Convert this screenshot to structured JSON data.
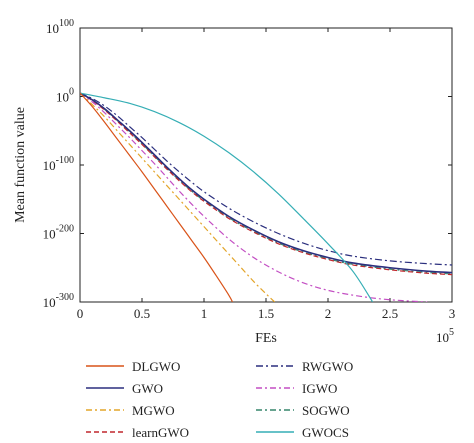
{
  "chart_data": {
    "type": "line",
    "title": "",
    "xlabel": "FEs",
    "ylabel": "Mean function value",
    "x_scale_label": "10^5",
    "x_scale_base": "10",
    "x_scale_exp": "5",
    "xlim": [
      0,
      3
    ],
    "ylim_exponent": [
      -300,
      100
    ],
    "y_scale": "log",
    "x_ticks": [
      "0",
      "0.5",
      "1",
      "1.5",
      "2",
      "2.5",
      "3"
    ],
    "y_ticks": [
      {
        "exp": -300,
        "base": "10",
        "sup": "-300"
      },
      {
        "exp": -200,
        "base": "10",
        "sup": "-200"
      },
      {
        "exp": -100,
        "base": "10",
        "sup": "-100"
      },
      {
        "exp": 0,
        "base": "10",
        "sup": "0"
      },
      {
        "exp": 100,
        "base": "10",
        "sup": "100"
      }
    ],
    "grid": false,
    "legend_position": "bottom",
    "series": [
      {
        "name": "DLGWO",
        "color": "#d95319",
        "dash": "solid",
        "points": [
          [
            0,
            5
          ],
          [
            0.1,
            -15
          ],
          [
            0.2,
            -38
          ],
          [
            0.3,
            -62
          ],
          [
            0.4,
            -86
          ],
          [
            0.5,
            -110
          ],
          [
            0.6,
            -135
          ],
          [
            0.7,
            -160
          ],
          [
            0.8,
            -185
          ],
          [
            0.9,
            -210
          ],
          [
            1.0,
            -235
          ],
          [
            1.1,
            -262
          ],
          [
            1.2,
            -290
          ],
          [
            1.23,
            -300
          ]
        ]
      },
      {
        "name": "GWO",
        "color": "#2b2f7e",
        "dash": "solid",
        "points": [
          [
            0,
            5
          ],
          [
            0.1,
            -5
          ],
          [
            0.2,
            -18
          ],
          [
            0.3,
            -34
          ],
          [
            0.4,
            -50
          ],
          [
            0.5,
            -67
          ],
          [
            0.6,
            -85
          ],
          [
            0.7,
            -103
          ],
          [
            0.8,
            -120
          ],
          [
            0.9,
            -136
          ],
          [
            1.0,
            -150
          ],
          [
            1.2,
            -175
          ],
          [
            1.4,
            -195
          ],
          [
            1.6,
            -212
          ],
          [
            1.8,
            -225
          ],
          [
            2.0,
            -235
          ],
          [
            2.2,
            -243
          ],
          [
            2.5,
            -250
          ],
          [
            2.8,
            -255
          ],
          [
            3.0,
            -257
          ]
        ]
      },
      {
        "name": "MGWO",
        "color": "#e3a52a",
        "dash": "6 3 2 3",
        "points": [
          [
            0,
            5
          ],
          [
            0.1,
            -12
          ],
          [
            0.2,
            -30
          ],
          [
            0.3,
            -50
          ],
          [
            0.4,
            -70
          ],
          [
            0.5,
            -90
          ],
          [
            0.6,
            -110
          ],
          [
            0.7,
            -130
          ],
          [
            0.8,
            -150
          ],
          [
            0.9,
            -170
          ],
          [
            1.0,
            -190
          ],
          [
            1.1,
            -210
          ],
          [
            1.2,
            -230
          ],
          [
            1.3,
            -250
          ],
          [
            1.4,
            -270
          ],
          [
            1.5,
            -288
          ],
          [
            1.57,
            -300
          ]
        ]
      },
      {
        "name": "learnGWO",
        "color": "#c1272d",
        "dash": "5 3",
        "points": [
          [
            0,
            5
          ],
          [
            0.1,
            -6
          ],
          [
            0.2,
            -20
          ],
          [
            0.3,
            -36
          ],
          [
            0.4,
            -53
          ],
          [
            0.5,
            -70
          ],
          [
            0.6,
            -88
          ],
          [
            0.7,
            -106
          ],
          [
            0.8,
            -123
          ],
          [
            0.9,
            -139
          ],
          [
            1.0,
            -153
          ],
          [
            1.2,
            -178
          ],
          [
            1.4,
            -198
          ],
          [
            1.6,
            -215
          ],
          [
            1.8,
            -228
          ],
          [
            2.0,
            -238
          ],
          [
            2.2,
            -246
          ],
          [
            2.5,
            -253
          ],
          [
            2.8,
            -258
          ],
          [
            3.0,
            -260
          ]
        ]
      },
      {
        "name": "RWGWO",
        "color": "#2b2f7e",
        "dash": "7 3 2 3",
        "points": [
          [
            0,
            5
          ],
          [
            0.1,
            -3
          ],
          [
            0.2,
            -14
          ],
          [
            0.3,
            -28
          ],
          [
            0.4,
            -44
          ],
          [
            0.5,
            -60
          ],
          [
            0.6,
            -77
          ],
          [
            0.7,
            -94
          ],
          [
            0.8,
            -110
          ],
          [
            0.9,
            -125
          ],
          [
            1.0,
            -139
          ],
          [
            1.2,
            -163
          ],
          [
            1.4,
            -183
          ],
          [
            1.6,
            -200
          ],
          [
            1.8,
            -214
          ],
          [
            2.0,
            -225
          ],
          [
            2.2,
            -233
          ],
          [
            2.5,
            -240
          ],
          [
            2.8,
            -244
          ],
          [
            3.0,
            -246
          ]
        ]
      },
      {
        "name": "IGWO",
        "color": "#c34fc3",
        "dash": "6 3 2 3",
        "points": [
          [
            0,
            5
          ],
          [
            0.1,
            -8
          ],
          [
            0.2,
            -24
          ],
          [
            0.3,
            -42
          ],
          [
            0.4,
            -60
          ],
          [
            0.5,
            -79
          ],
          [
            0.6,
            -98
          ],
          [
            0.7,
            -118
          ],
          [
            0.8,
            -138
          ],
          [
            0.9,
            -157
          ],
          [
            1.0,
            -175
          ],
          [
            1.2,
            -208
          ],
          [
            1.4,
            -235
          ],
          [
            1.6,
            -256
          ],
          [
            1.8,
            -272
          ],
          [
            2.0,
            -283
          ],
          [
            2.2,
            -290
          ],
          [
            2.4,
            -295
          ],
          [
            2.6,
            -298
          ],
          [
            2.8,
            -300
          ]
        ]
      },
      {
        "name": "SOGWO",
        "color": "#37866b",
        "dash": "6 3 2 3",
        "points": [
          [
            0,
            5
          ],
          [
            0.1,
            -5
          ],
          [
            0.2,
            -19
          ],
          [
            0.3,
            -35
          ],
          [
            0.4,
            -52
          ],
          [
            0.5,
            -69
          ],
          [
            0.6,
            -87
          ],
          [
            0.7,
            -105
          ],
          [
            0.8,
            -122
          ],
          [
            0.9,
            -138
          ],
          [
            1.0,
            -152
          ],
          [
            1.2,
            -177
          ],
          [
            1.4,
            -197
          ],
          [
            1.6,
            -214
          ],
          [
            1.8,
            -227
          ],
          [
            2.0,
            -237
          ],
          [
            2.2,
            -245
          ],
          [
            2.5,
            -252
          ],
          [
            2.8,
            -257
          ],
          [
            3.0,
            -259
          ]
        ]
      },
      {
        "name": "GWOCS",
        "color": "#35aeb5",
        "dash": "solid",
        "points": [
          [
            0,
            5
          ],
          [
            0.2,
            -2
          ],
          [
            0.4,
            -10
          ],
          [
            0.6,
            -22
          ],
          [
            0.8,
            -38
          ],
          [
            1.0,
            -58
          ],
          [
            1.2,
            -82
          ],
          [
            1.4,
            -110
          ],
          [
            1.6,
            -142
          ],
          [
            1.8,
            -178
          ],
          [
            2.0,
            -215
          ],
          [
            2.2,
            -255
          ],
          [
            2.36,
            -300
          ]
        ]
      }
    ]
  }
}
